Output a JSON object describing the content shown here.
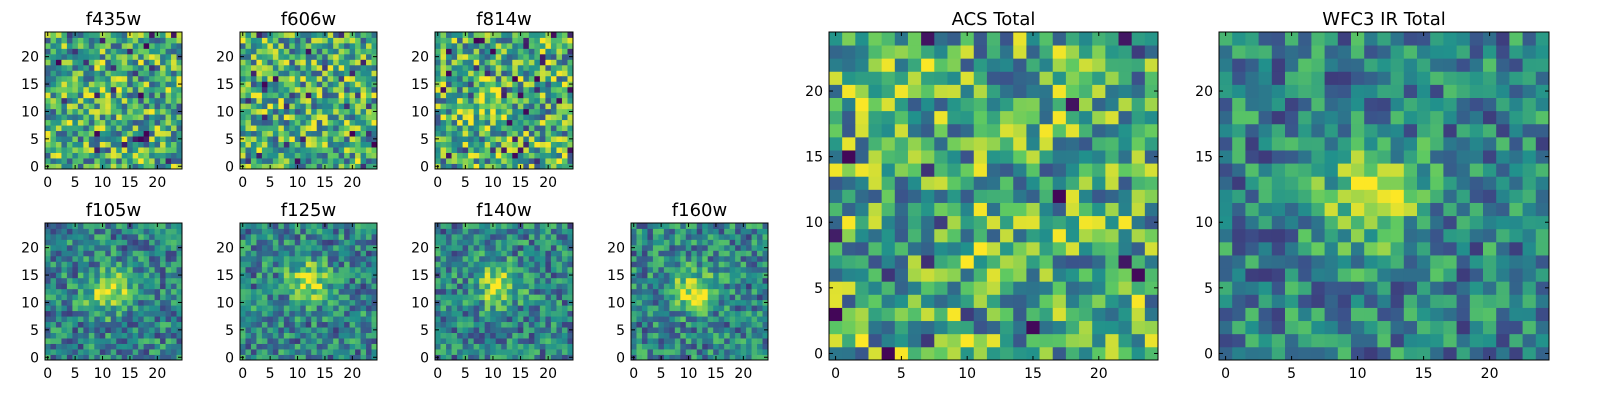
{
  "figure": {
    "colormap": "viridis",
    "background": "#ffffff",
    "viridis_stops": [
      "#440154",
      "#3b528b",
      "#21918c",
      "#5ec962",
      "#fde725"
    ]
  },
  "chart_data": [
    {
      "type": "heatmap",
      "title": "f435w",
      "grid": [
        25,
        25
      ],
      "xlim": [
        0,
        24
      ],
      "ylim": [
        0,
        24
      ],
      "xticks": [
        0,
        5,
        10,
        15,
        20
      ],
      "yticks": [
        0,
        5,
        10,
        15,
        20
      ],
      "grid_lines": false,
      "source_peak": null
    },
    {
      "type": "heatmap",
      "title": "f606w",
      "grid": [
        25,
        25
      ],
      "xlim": [
        0,
        24
      ],
      "ylim": [
        0,
        24
      ],
      "xticks": [
        0,
        5,
        10,
        15,
        20
      ],
      "yticks": [
        0,
        5,
        10,
        15,
        20
      ],
      "grid_lines": false,
      "source_peak": null
    },
    {
      "type": "heatmap",
      "title": "f814w",
      "grid": [
        25,
        25
      ],
      "xlim": [
        0,
        24
      ],
      "ylim": [
        0,
        24
      ],
      "xticks": [
        0,
        5,
        10,
        15,
        20
      ],
      "yticks": [
        0,
        5,
        10,
        15,
        20
      ],
      "grid_lines": false,
      "source_peak": [
        9,
        12
      ]
    },
    {
      "type": "heatmap",
      "title": "f105w",
      "grid": [
        25,
        25
      ],
      "xlim": [
        0,
        24
      ],
      "ylim": [
        0,
        24
      ],
      "xticks": [
        0,
        5,
        10,
        15,
        20
      ],
      "yticks": [
        0,
        5,
        10,
        15,
        20
      ],
      "grid_lines": false,
      "source_peak": [
        11,
        12
      ]
    },
    {
      "type": "heatmap",
      "title": "f125w",
      "grid": [
        25,
        25
      ],
      "xlim": [
        0,
        24
      ],
      "ylim": [
        0,
        24
      ],
      "xticks": [
        0,
        5,
        10,
        15,
        20
      ],
      "yticks": [
        0,
        5,
        10,
        15,
        20
      ],
      "grid_lines": false,
      "source_peak": [
        12,
        14
      ]
    },
    {
      "type": "heatmap",
      "title": "f140w",
      "grid": [
        25,
        25
      ],
      "xlim": [
        0,
        24
      ],
      "ylim": [
        0,
        24
      ],
      "xticks": [
        0,
        5,
        10,
        15,
        20
      ],
      "yticks": [
        0,
        5,
        10,
        15,
        20
      ],
      "grid_lines": false,
      "source_peak": [
        11,
        13
      ]
    },
    {
      "type": "heatmap",
      "title": "f160w",
      "grid": [
        25,
        25
      ],
      "xlim": [
        0,
        24
      ],
      "ylim": [
        0,
        24
      ],
      "xticks": [
        0,
        5,
        10,
        15,
        20
      ],
      "yticks": [
        0,
        5,
        10,
        15,
        20
      ],
      "grid_lines": false,
      "source_peak": [
        11,
        12
      ]
    },
    {
      "type": "heatmap",
      "title": "ACS Total",
      "grid": [
        25,
        25
      ],
      "xlim": [
        0,
        24
      ],
      "ylim": [
        0,
        24
      ],
      "xticks": [
        0,
        5,
        10,
        15,
        20
      ],
      "yticks": [
        0,
        5,
        10,
        15,
        20
      ],
      "grid_lines": false,
      "source_peak": null
    },
    {
      "type": "heatmap",
      "title": "WFC3 IR Total",
      "grid": [
        25,
        25
      ],
      "xlim": [
        0,
        24
      ],
      "ylim": [
        0,
        24
      ],
      "xticks": [
        0,
        5,
        10,
        15,
        20
      ],
      "yticks": [
        0,
        5,
        10,
        15,
        20
      ],
      "grid_lines": false,
      "source_peak": [
        11,
        12
      ]
    }
  ]
}
